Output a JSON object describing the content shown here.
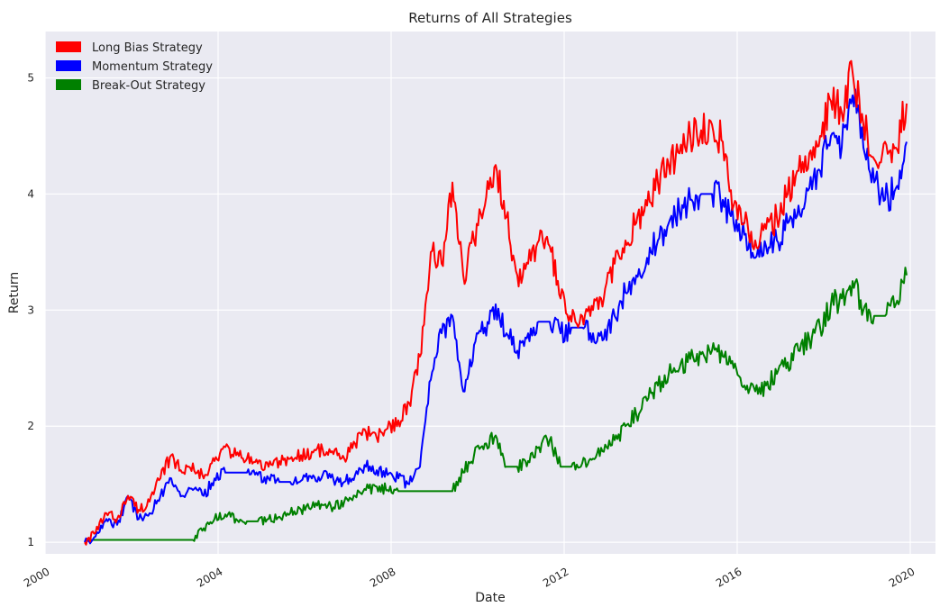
{
  "chart_data": {
    "type": "line",
    "title": "Returns of All Strategies",
    "xlabel": "Date",
    "ylabel": "Return",
    "xlim": [
      "2000-01-01",
      "2020-08-01"
    ],
    "ylim": [
      0.9,
      5.4
    ],
    "x_ticks": [
      "2000",
      "2004",
      "2008",
      "2012",
      "2016",
      "2020"
    ],
    "y_ticks": [
      "1",
      "2",
      "3",
      "4",
      "5"
    ],
    "grid": true,
    "legend_position": "top-left",
    "background_color": "#EAEAF2",
    "x": [
      "2000-12",
      "2001-03",
      "2001-06",
      "2001-09",
      "2001-12",
      "2002-03",
      "2002-06",
      "2002-09",
      "2002-12",
      "2003-03",
      "2003-06",
      "2003-09",
      "2003-12",
      "2004-03",
      "2004-06",
      "2004-09",
      "2004-12",
      "2005-03",
      "2005-06",
      "2005-09",
      "2005-12",
      "2006-03",
      "2006-06",
      "2006-09",
      "2006-12",
      "2007-03",
      "2007-06",
      "2007-09",
      "2007-12",
      "2008-03",
      "2008-06",
      "2008-09",
      "2008-12",
      "2009-03",
      "2009-06",
      "2009-09",
      "2009-12",
      "2010-03",
      "2010-06",
      "2010-09",
      "2010-12",
      "2011-03",
      "2011-06",
      "2011-09",
      "2011-12",
      "2012-03",
      "2012-06",
      "2012-09",
      "2012-12",
      "2013-03",
      "2013-06",
      "2013-09",
      "2013-12",
      "2014-03",
      "2014-06",
      "2014-09",
      "2014-12",
      "2015-03",
      "2015-06",
      "2015-09",
      "2015-12",
      "2016-03",
      "2016-06",
      "2016-09",
      "2016-12",
      "2017-03",
      "2017-06",
      "2017-09",
      "2017-12",
      "2018-03",
      "2018-06",
      "2018-09",
      "2018-12",
      "2019-03",
      "2019-06",
      "2019-09",
      "2019-12"
    ],
    "series": [
      {
        "name": "Long Bias Strategy",
        "color": "#FF0000",
        "values": [
          1.0,
          1.08,
          1.25,
          1.2,
          1.4,
          1.28,
          1.35,
          1.55,
          1.75,
          1.6,
          1.68,
          1.55,
          1.7,
          1.82,
          1.75,
          1.72,
          1.68,
          1.65,
          1.7,
          1.72,
          1.75,
          1.78,
          1.8,
          1.76,
          1.72,
          1.85,
          1.95,
          1.9,
          1.98,
          2.05,
          2.2,
          2.6,
          3.5,
          3.4,
          4.1,
          3.3,
          3.6,
          3.9,
          4.25,
          3.8,
          3.3,
          3.4,
          3.6,
          3.55,
          3.1,
          2.9,
          2.95,
          3.0,
          3.1,
          3.4,
          3.6,
          3.75,
          3.9,
          4.1,
          4.25,
          4.35,
          4.5,
          4.55,
          4.6,
          4.45,
          3.9,
          3.75,
          3.6,
          3.7,
          3.8,
          4.0,
          4.2,
          4.35,
          4.5,
          4.8,
          4.7,
          5.05,
          4.6,
          4.3,
          4.45,
          4.4,
          4.78
        ]
      },
      {
        "name": "Momentum Strategy",
        "color": "#0000FF",
        "values": [
          1.0,
          1.05,
          1.2,
          1.15,
          1.4,
          1.2,
          1.25,
          1.4,
          1.55,
          1.4,
          1.45,
          1.4,
          1.55,
          1.6,
          1.6,
          1.6,
          1.58,
          1.55,
          1.52,
          1.52,
          1.53,
          1.55,
          1.58,
          1.54,
          1.52,
          1.58,
          1.65,
          1.62,
          1.58,
          1.55,
          1.5,
          1.65,
          2.4,
          2.8,
          2.95,
          2.3,
          2.7,
          2.85,
          3.05,
          2.8,
          2.65,
          2.8,
          2.9,
          2.9,
          2.8,
          2.85,
          2.85,
          2.8,
          2.75,
          2.95,
          3.15,
          3.3,
          3.45,
          3.6,
          3.75,
          3.85,
          3.95,
          4.0,
          4.0,
          3.95,
          3.75,
          3.65,
          3.45,
          3.55,
          3.6,
          3.75,
          3.9,
          4.05,
          4.2,
          4.5,
          4.4,
          4.85,
          4.4,
          4.1,
          3.95,
          4.05,
          4.45
        ]
      },
      {
        "name": "Break-Out Strategy",
        "color": "#008000",
        "values": [
          1.02,
          1.02,
          1.02,
          1.02,
          1.02,
          1.02,
          1.02,
          1.02,
          1.02,
          1.02,
          1.02,
          1.12,
          1.2,
          1.24,
          1.2,
          1.18,
          1.18,
          1.2,
          1.22,
          1.25,
          1.28,
          1.3,
          1.32,
          1.3,
          1.35,
          1.4,
          1.45,
          1.48,
          1.45,
          1.44,
          1.44,
          1.44,
          1.44,
          1.44,
          1.44,
          1.6,
          1.75,
          1.85,
          1.92,
          1.65,
          1.65,
          1.7,
          1.82,
          1.88,
          1.65,
          1.65,
          1.68,
          1.72,
          1.78,
          1.88,
          2.0,
          2.1,
          2.22,
          2.35,
          2.45,
          2.5,
          2.58,
          2.62,
          2.65,
          2.6,
          2.5,
          2.35,
          2.3,
          2.35,
          2.45,
          2.55,
          2.65,
          2.75,
          2.85,
          3.05,
          3.1,
          3.25,
          3.0,
          2.95,
          2.95,
          3.05,
          3.3
        ]
      }
    ]
  }
}
